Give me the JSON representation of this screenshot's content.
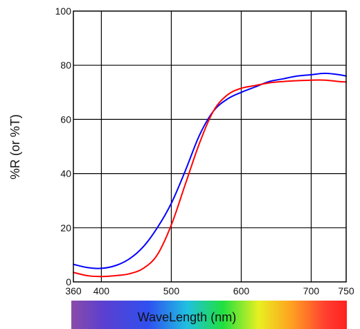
{
  "chart_data": {
    "type": "line",
    "title": "",
    "xlabel": "WaveLength (nm)",
    "ylabel": "%R (or %T)",
    "xlim": [
      360,
      750
    ],
    "ylim": [
      0,
      100
    ],
    "x_ticks": [
      360,
      400,
      500,
      600,
      700,
      750
    ],
    "y_ticks": [
      0,
      20,
      40,
      60,
      80,
      100
    ],
    "grid": true,
    "legend": "none",
    "xlabel_background": "visible-spectrum gradient",
    "series": [
      {
        "color": "#0000ff",
        "x": [
          360,
          380,
          400,
          420,
          440,
          460,
          480,
          500,
          520,
          540,
          560,
          580,
          600,
          620,
          640,
          660,
          680,
          700,
          720,
          740,
          750
        ],
        "values": [
          6.5,
          5.3,
          5,
          6,
          8.5,
          13,
          20,
          29,
          41,
          54,
          63,
          67.5,
          70,
          72,
          74,
          75,
          76,
          76.5,
          77,
          76.5,
          76
        ]
      },
      {
        "color": "#ff0000",
        "x": [
          360,
          380,
          400,
          420,
          440,
          460,
          480,
          500,
          520,
          540,
          560,
          580,
          600,
          620,
          640,
          660,
          680,
          700,
          720,
          740,
          750
        ],
        "values": [
          3.5,
          2.3,
          2,
          2.3,
          3,
          5,
          10,
          21,
          36,
          51,
          63,
          69,
          71.5,
          72.5,
          73.5,
          74,
          74.3,
          74.5,
          74.5,
          74,
          73.8
        ]
      }
    ]
  }
}
